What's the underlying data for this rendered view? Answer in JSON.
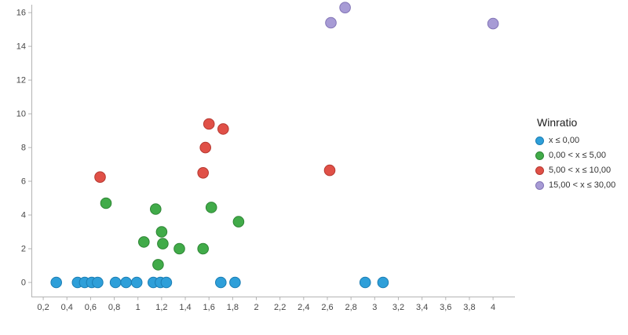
{
  "chart_data": {
    "type": "scatter",
    "title": "",
    "legend": {
      "title": "Winratio",
      "position": "right",
      "items": [
        {
          "label": "x ≤ 0,00",
          "color": "#2e9fd9",
          "stroke": "#1b7db3"
        },
        {
          "label": "0,00 < x ≤ 5,00",
          "color": "#41ab49",
          "stroke": "#2e8535"
        },
        {
          "label": "5,00 < x ≤ 10,00",
          "color": "#e05047",
          "stroke": "#b63931"
        },
        {
          "label": "15,00 < x ≤ 30,00",
          "color": "#a79bd5",
          "stroke": "#8274b6"
        }
      ]
    },
    "axes": {
      "grid": false,
      "xlim": [
        0.1,
        4.185
      ],
      "ylim": [
        -0.86,
        16.47
      ],
      "x_tick_labels": [
        "0,2",
        "0,4",
        "0,6",
        "0,8",
        "1",
        "1,2",
        "1,4",
        "1,6",
        "1,8",
        "2",
        "2,2",
        "2,4",
        "2,6",
        "2,8",
        "3",
        "3,2",
        "3,4",
        "3,6",
        "3,8",
        "4"
      ],
      "x_tick_values": [
        0.2,
        0.4,
        0.6,
        0.8,
        1,
        1.2,
        1.4,
        1.6,
        1.8,
        2,
        2.2,
        2.4,
        2.6,
        2.8,
        3,
        3.2,
        3.4,
        3.6,
        3.8,
        4
      ],
      "y_tick_labels": [
        "0",
        "2",
        "4",
        "6",
        "8",
        "10",
        "12",
        "14",
        "16"
      ],
      "y_tick_values": [
        0,
        2,
        4,
        6,
        8,
        10,
        12,
        14,
        16
      ]
    },
    "series": [
      {
        "name": "x ≤ 0,00",
        "color": "#2e9fd9",
        "stroke": "#1b7db3",
        "points": [
          [
            0.31,
            0
          ],
          [
            0.49,
            0
          ],
          [
            0.55,
            0
          ],
          [
            0.61,
            0
          ],
          [
            0.66,
            0
          ],
          [
            0.81,
            0
          ],
          [
            0.9,
            0
          ],
          [
            0.99,
            0
          ],
          [
            1.13,
            0
          ],
          [
            1.19,
            0
          ],
          [
            1.24,
            0
          ],
          [
            1.7,
            0
          ],
          [
            1.82,
            0
          ],
          [
            2.92,
            0
          ],
          [
            3.07,
            0
          ]
        ]
      },
      {
        "name": "0,00 < x ≤ 5,00",
        "color": "#41ab49",
        "stroke": "#2e8535",
        "points": [
          [
            0.73,
            4.7
          ],
          [
            1.05,
            2.4
          ],
          [
            1.15,
            4.35
          ],
          [
            1.17,
            1.05
          ],
          [
            1.2,
            3.0
          ],
          [
            1.21,
            2.3
          ],
          [
            1.35,
            2.0
          ],
          [
            1.55,
            2.0
          ],
          [
            1.62,
            4.45
          ],
          [
            1.85,
            3.6
          ]
        ]
      },
      {
        "name": "5,00 < x ≤ 10,00",
        "color": "#e05047",
        "stroke": "#b63931",
        "points": [
          [
            0.68,
            6.25
          ],
          [
            1.55,
            6.5
          ],
          [
            1.57,
            8.0
          ],
          [
            1.6,
            9.4
          ],
          [
            1.72,
            9.1
          ],
          [
            2.62,
            6.65
          ]
        ]
      },
      {
        "name": "15,00 < x ≤ 30,00",
        "color": "#a79bd5",
        "stroke": "#8274b6",
        "points": [
          [
            2.63,
            15.4
          ],
          [
            2.75,
            16.3
          ],
          [
            4.0,
            15.35
          ]
        ]
      }
    ]
  }
}
